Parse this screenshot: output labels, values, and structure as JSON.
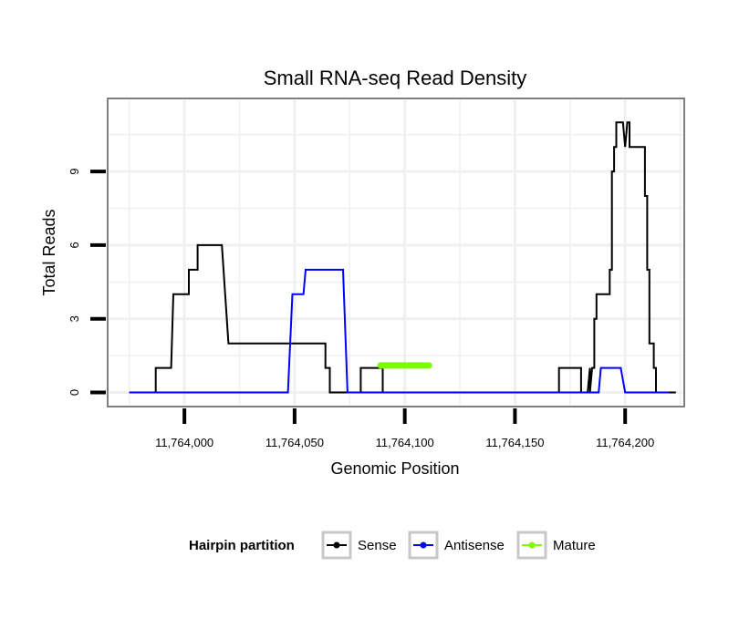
{
  "chart_data": {
    "type": "line",
    "title": "Small RNA-seq Read Density",
    "xlabel": "Genomic Position",
    "ylabel": "Total Reads",
    "xlim": [
      11763966,
      11764226
    ],
    "ylim": [
      -0.5,
      11.9
    ],
    "x_ticks": [
      11764000,
      11764050,
      11764100,
      11764150,
      11764200
    ],
    "x_tick_labels": [
      "11,764,000",
      "11,764,050",
      "11,764,100",
      "11,764,150",
      "11,764,200"
    ],
    "y_ticks": [
      0,
      3,
      6,
      9
    ],
    "y_tick_labels": [
      "0",
      "3",
      "6",
      "9"
    ],
    "grid": true,
    "legend": {
      "title": "Hairpin partition",
      "placement": "bottom",
      "entries": [
        "Sense",
        "Antisense",
        "Mature"
      ]
    },
    "colors": {
      "Sense": "#000000",
      "Antisense": "#0000ff",
      "Mature": "#7cfc00",
      "panel_border": "#7f7f7f",
      "grid": "#f0f0f0"
    },
    "series": [
      {
        "name": "Sense",
        "color": "#000000",
        "x": [
          11763975,
          11763987,
          11763987,
          11763988,
          11763994,
          11763995,
          11763995,
          11763996,
          11763996,
          11763998,
          11764002,
          11764002,
          11764005,
          11764006,
          11764006,
          11764007,
          11764007,
          11764010,
          11764010,
          11764016,
          11764016,
          11764017,
          11764017,
          11764020,
          11764020,
          11764022,
          11764022,
          11764064,
          11764064,
          11764066,
          11764066,
          11764080,
          11764080,
          11764090,
          11764090,
          11764170,
          11764170,
          11764180,
          11764180,
          11764183,
          11764184,
          11764184,
          11764185,
          11764186,
          11764186,
          11764187,
          11764187,
          11764193,
          11764193,
          11764194,
          11764194,
          11764195,
          11764195,
          11764196,
          11764196,
          11764199,
          11764200,
          11764201,
          11764201,
          11764202,
          11764202,
          11764209,
          11764209,
          11764210,
          11764210,
          11764211,
          11764211,
          11764213,
          11764213,
          11764214,
          11764214,
          11764216,
          11764216,
          11764217,
          11764220,
          11764223
        ],
        "y": [
          0,
          0,
          1,
          1,
          1,
          4,
          4,
          4,
          4,
          4,
          4,
          5,
          5,
          5,
          6,
          6,
          6,
          6,
          6,
          6,
          6,
          6,
          6,
          2,
          2,
          2,
          2,
          2,
          1,
          1,
          0,
          0,
          1,
          1,
          0,
          0,
          1,
          1,
          0,
          0,
          1,
          0,
          1,
          1,
          3,
          3,
          4,
          4,
          5,
          5,
          9,
          9,
          10,
          10,
          11,
          11,
          10,
          11,
          11,
          11,
          10,
          10,
          8,
          8,
          5,
          5,
          2,
          2,
          1,
          1,
          0,
          0,
          0,
          0,
          0,
          0
        ]
      },
      {
        "name": "Antisense",
        "color": "#0000ff",
        "x": [
          11763975,
          11764047,
          11764049,
          11764054,
          11764055,
          11764072,
          11764074,
          11764188,
          11764189,
          11764198,
          11764200,
          11764220
        ],
        "y": [
          0,
          0,
          4,
          4,
          5,
          5,
          0,
          0,
          1,
          1,
          0,
          0
        ]
      },
      {
        "name": "Mature",
        "color": "#7cfc00",
        "x": [
          11764089,
          11764111
        ],
        "y": [
          1.1,
          1.1
        ]
      }
    ]
  }
}
